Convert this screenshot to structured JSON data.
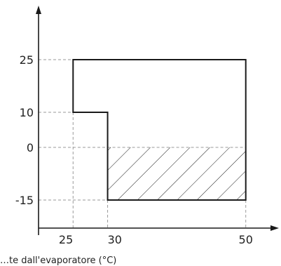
{
  "chart_data": {
    "type": "area",
    "title": "",
    "xlabel": "…te dall'evaporatore (°C)",
    "ylabel": "",
    "x_ticks": [
      25,
      30,
      50
    ],
    "x_tick_labels": [
      "25",
      "30",
      "50"
    ],
    "y_ticks": [
      25,
      10,
      0,
      -15
    ],
    "y_tick_labels": [
      "25",
      "10",
      "0",
      "-15"
    ],
    "xlim": [
      20,
      55
    ],
    "ylim": [
      -23,
      40
    ],
    "grid": false,
    "guide_lines": "dashed",
    "envelope": [
      [
        25,
        25
      ],
      [
        50,
        25
      ],
      [
        50,
        -15
      ],
      [
        30,
        -15
      ],
      [
        30,
        10
      ],
      [
        25,
        10
      ]
    ],
    "hatched_region": {
      "x": [
        30,
        50
      ],
      "y": [
        -15,
        0
      ]
    },
    "colors": {
      "line": "#1a1a1a",
      "guide": "#9a9a9a",
      "hatch": "#1a1a1a"
    }
  }
}
